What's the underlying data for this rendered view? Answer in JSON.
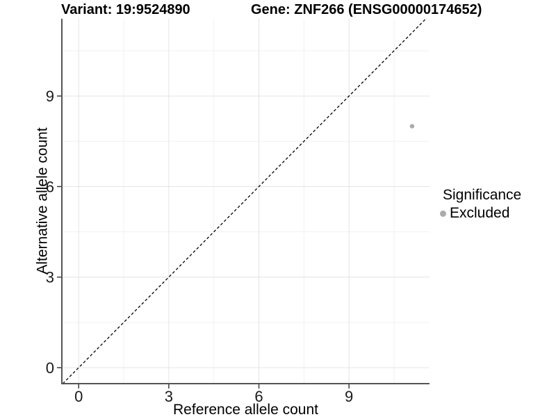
{
  "chart_data": {
    "type": "scatter",
    "title_left": "Variant: 19:9524890",
    "title_right": "Gene: ZNF266 (ENSG00000174652)",
    "xlabel": "Reference allele count",
    "ylabel": "Alternative allele count",
    "x_ticks": [
      0,
      3,
      6,
      9
    ],
    "y_ticks": [
      0,
      3,
      6,
      9
    ],
    "x_minor_ticks": [
      1.5,
      4.5,
      7.5,
      10.5
    ],
    "y_minor_ticks": [
      1.5,
      4.5,
      7.5,
      10.5
    ],
    "xlim": [
      -0.56,
      11.68
    ],
    "ylim": [
      -0.53,
      11.56
    ],
    "grid": true,
    "reference_line": {
      "kind": "identity y = x",
      "style": "dashed",
      "color": "#000000"
    },
    "series": [
      {
        "name": "Excluded",
        "color": "#ababab",
        "marker": "circle",
        "points": [
          {
            "x": 11.1,
            "y": 8.0
          }
        ]
      }
    ],
    "legend": {
      "title": "Significance",
      "position": "right",
      "entries": [
        {
          "label": "Excluded",
          "color": "#ababab",
          "marker": "circle"
        }
      ]
    }
  },
  "colors": {
    "background": "#ffffff",
    "grid_major": "#e4e4e4",
    "grid_minor": "#f1f1f1",
    "axis_line": "#545454",
    "tick_mark": "#3a3a3a",
    "tick_label": "#1a1a1a",
    "point": "#ababab",
    "identity_line": "#000000"
  }
}
